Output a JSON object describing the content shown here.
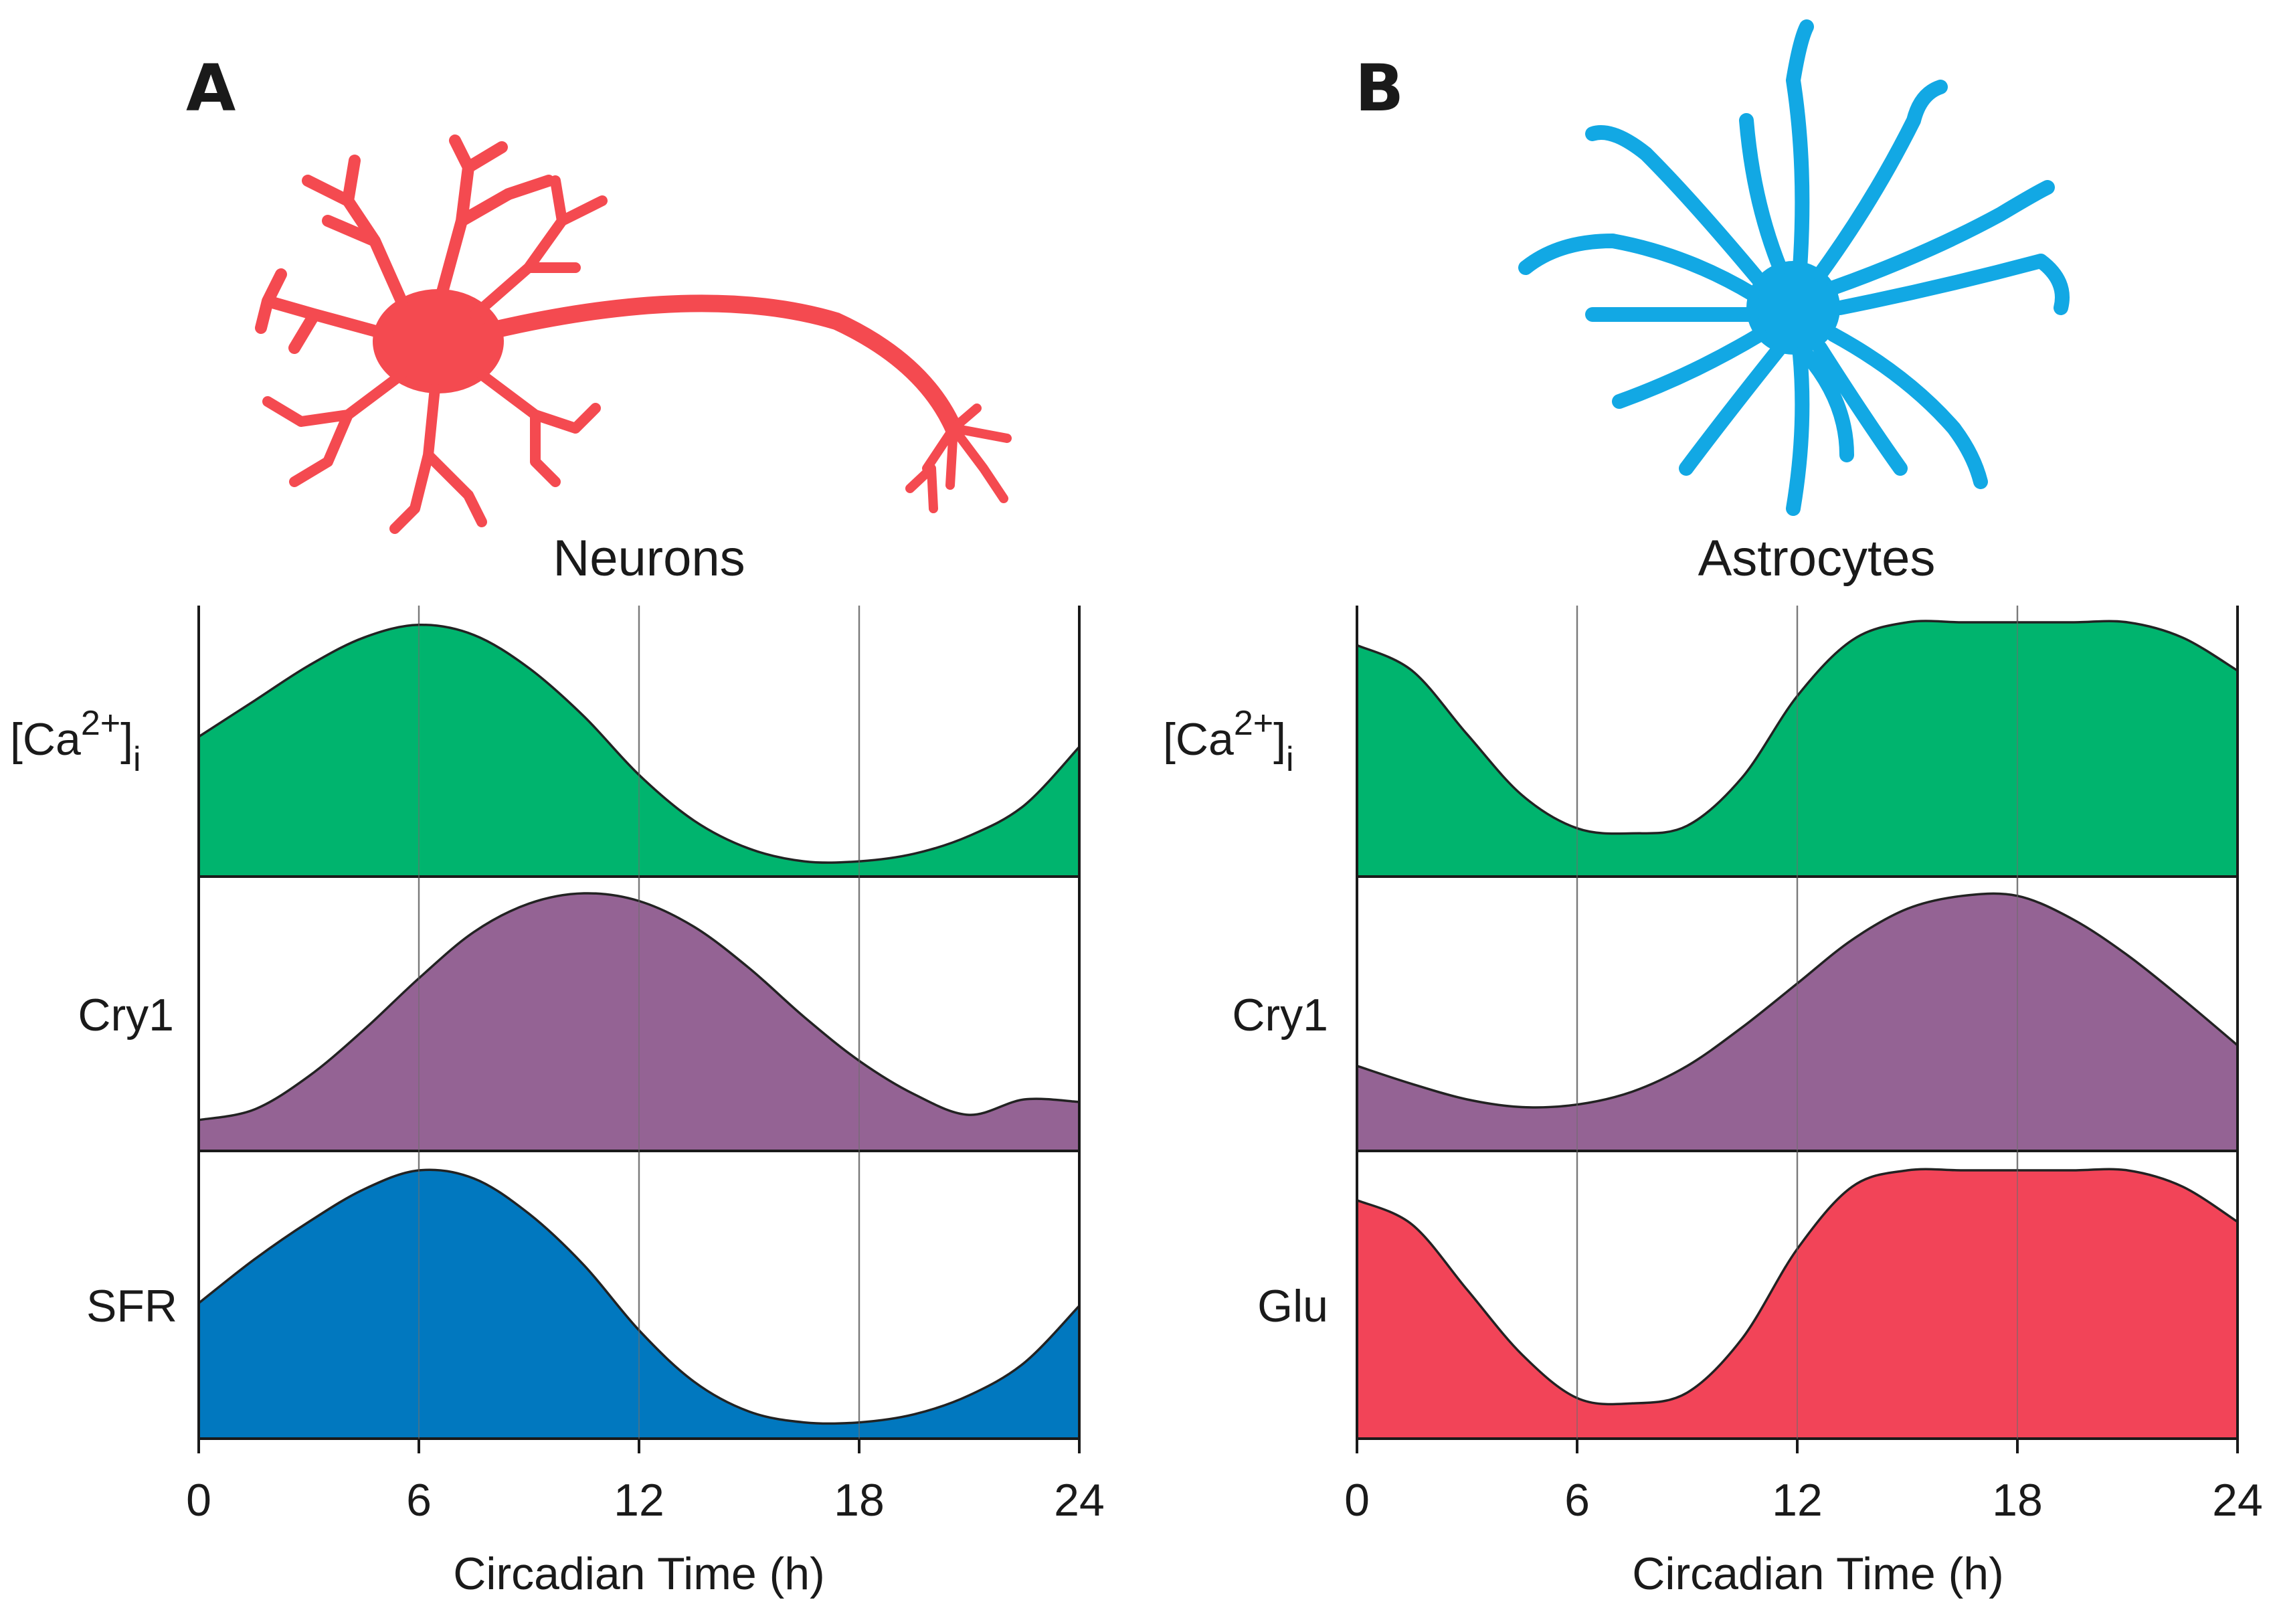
{
  "panels": [
    {
      "letter": "A",
      "title": "Neurons",
      "cell_icon": "neuron-icon",
      "cell_color": "#f44a50",
      "xlabel": "Circadian Time (h)",
      "xticks": [
        "0",
        "6",
        "12",
        "18",
        "24"
      ]
    },
    {
      "letter": "B",
      "title": "Astrocytes",
      "cell_icon": "astrocyte-icon",
      "cell_color": "#12a8e4",
      "xlabel": "Circadian Time (h)",
      "xticks": [
        "0",
        "6",
        "12",
        "18",
        "24"
      ]
    }
  ],
  "chart_data": [
    {
      "type": "area",
      "title": "Neurons",
      "xlabel": "Circadian Time (h)",
      "ylabel": "",
      "xlim": [
        0,
        24
      ],
      "xticks": [
        0,
        6,
        12,
        18,
        24
      ],
      "ylim": [
        0,
        1
      ],
      "grid": "vertical lines at 6, 12, 18",
      "x": [
        0,
        1.5,
        3,
        4.5,
        6,
        7.5,
        9,
        10.5,
        12,
        13.5,
        15,
        16.5,
        18,
        19.5,
        21,
        22.5,
        24
      ],
      "series": [
        {
          "name": "[Ca2+]i",
          "color": "#00b46e",
          "values": [
            0.55,
            0.69,
            0.83,
            0.94,
            0.99,
            0.95,
            0.82,
            0.63,
            0.4,
            0.22,
            0.11,
            0.06,
            0.06,
            0.09,
            0.16,
            0.28,
            0.51
          ]
        },
        {
          "name": "Cry1",
          "color": "#946394",
          "values": [
            0.12,
            0.16,
            0.29,
            0.47,
            0.67,
            0.85,
            0.96,
            1.0,
            0.97,
            0.87,
            0.71,
            0.52,
            0.35,
            0.22,
            0.14,
            0.2,
            0.19
          ]
        },
        {
          "name": "SFR",
          "color": "#0178bf",
          "values": [
            0.5,
            0.66,
            0.8,
            0.92,
            0.99,
            0.96,
            0.83,
            0.64,
            0.4,
            0.21,
            0.1,
            0.06,
            0.06,
            0.09,
            0.16,
            0.28,
            0.49
          ]
        }
      ]
    },
    {
      "type": "area",
      "title": "Astrocytes",
      "xlabel": "Circadian Time (h)",
      "ylabel": "",
      "xlim": [
        0,
        24
      ],
      "xticks": [
        0,
        6,
        12,
        18,
        24
      ],
      "ylim": [
        0,
        1
      ],
      "grid": "vertical lines at 6, 12, 18",
      "x": [
        0,
        1.5,
        3,
        4.5,
        6,
        7.5,
        9,
        10.5,
        12,
        13.5,
        15,
        16.5,
        18,
        19.5,
        21,
        22.5,
        24
      ],
      "series": [
        {
          "name": "[Ca2+]i",
          "color": "#00b46e",
          "values": [
            0.91,
            0.81,
            0.56,
            0.32,
            0.19,
            0.17,
            0.2,
            0.39,
            0.71,
            0.93,
            1.0,
            1.0,
            1.0,
            1.0,
            1.0,
            0.94,
            0.81
          ]
        },
        {
          "name": "Cry1",
          "color": "#946394",
          "values": [
            0.33,
            0.26,
            0.2,
            0.17,
            0.18,
            0.23,
            0.33,
            0.48,
            0.65,
            0.82,
            0.94,
            0.99,
            0.99,
            0.9,
            0.76,
            0.59,
            0.41
          ]
        },
        {
          "name": "Glu",
          "color": "#f24458",
          "values": [
            0.88,
            0.79,
            0.55,
            0.31,
            0.15,
            0.13,
            0.17,
            0.37,
            0.7,
            0.93,
            0.99,
            0.99,
            0.99,
            0.99,
            0.99,
            0.93,
            0.8
          ]
        }
      ]
    }
  ]
}
